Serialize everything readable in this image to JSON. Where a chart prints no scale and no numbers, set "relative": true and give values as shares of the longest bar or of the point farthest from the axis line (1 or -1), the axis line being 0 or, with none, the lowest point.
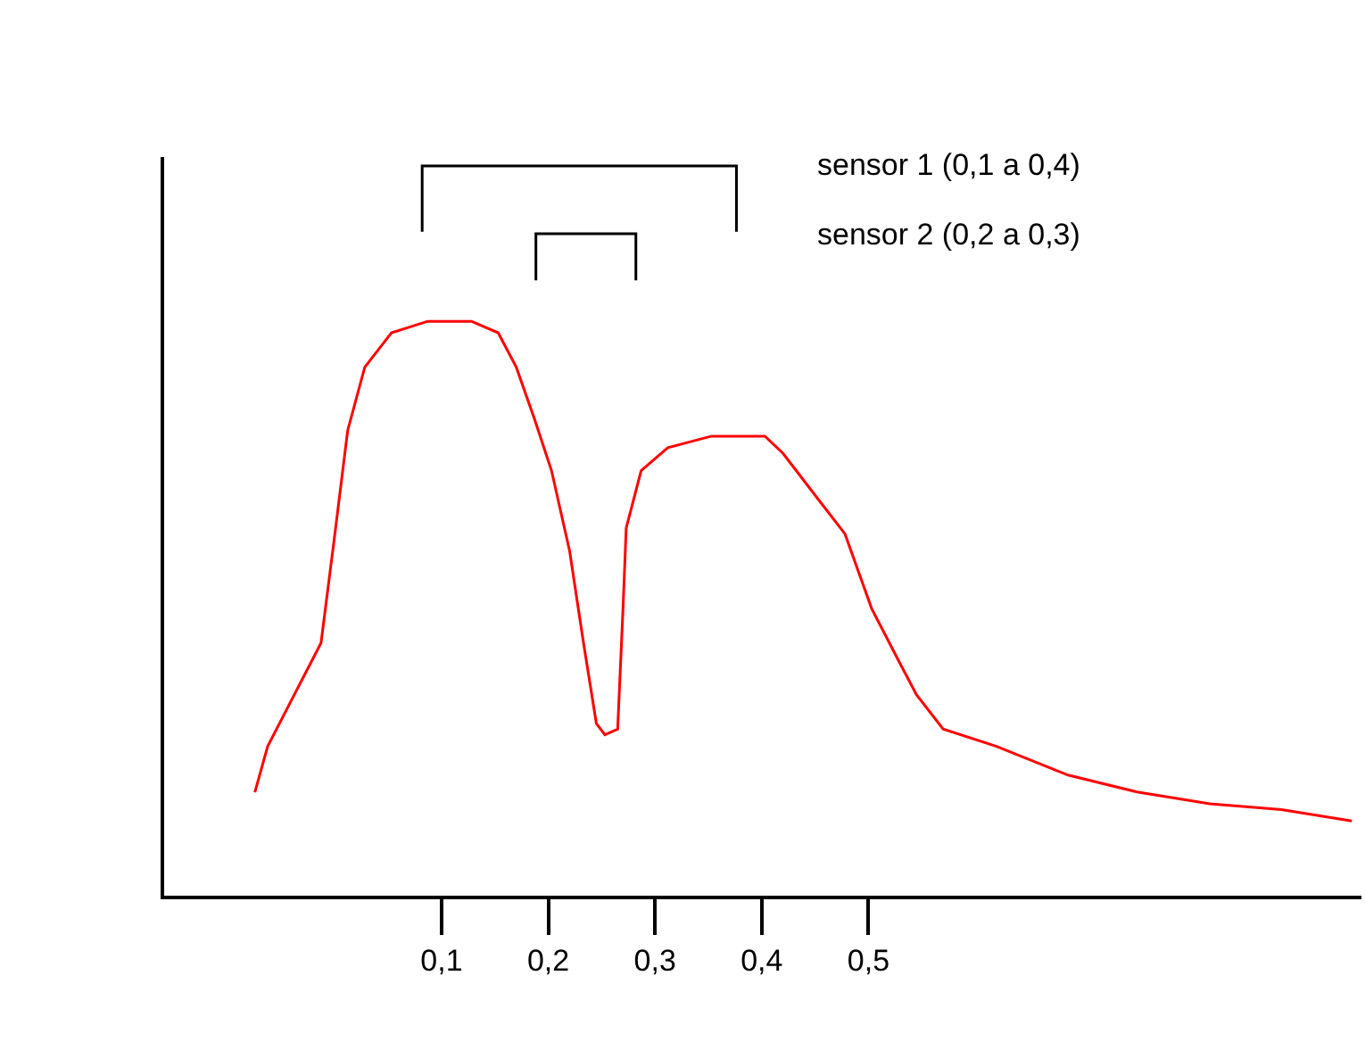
{
  "chart_data": {
    "type": "line",
    "relative": true,
    "color": "#ff0000",
    "x": [
      -0.075,
      -0.063,
      -0.038,
      -0.013,
      0.0,
      0.012,
      0.028,
      0.053,
      0.087,
      0.128,
      0.153,
      0.17,
      0.187,
      0.203,
      0.22,
      0.233,
      0.245,
      0.253,
      0.265,
      0.27,
      0.273,
      0.287,
      0.312,
      0.353,
      0.403,
      0.42,
      0.453,
      0.478,
      0.503,
      0.528,
      0.545,
      0.57,
      0.62,
      0.687,
      0.753,
      0.82,
      0.887,
      0.953
    ],
    "values": [
      0.18,
      0.26,
      0.35,
      0.44,
      0.63,
      0.81,
      0.92,
      0.98,
      1.0,
      1.0,
      0.98,
      0.92,
      0.83,
      0.74,
      0.6,
      0.44,
      0.3,
      0.28,
      0.29,
      0.5,
      0.64,
      0.74,
      0.78,
      0.8,
      0.8,
      0.77,
      0.69,
      0.63,
      0.5,
      0.41,
      0.35,
      0.29,
      0.26,
      0.21,
      0.18,
      0.16,
      0.15,
      0.13
    ],
    "xlim": [
      -0.16,
      0.962
    ],
    "xticks": [
      {
        "value": 0.1,
        "label": "0,1"
      },
      {
        "value": 0.2,
        "label": "0,2"
      },
      {
        "value": 0.3,
        "label": "0,3"
      },
      {
        "value": 0.4,
        "label": "0,4"
      },
      {
        "value": 0.5,
        "label": "0,5"
      }
    ],
    "annotations": [
      "sensor 1 (0,1 a 0,4)",
      "sensor 2 (0,2 a 0,3)"
    ]
  }
}
